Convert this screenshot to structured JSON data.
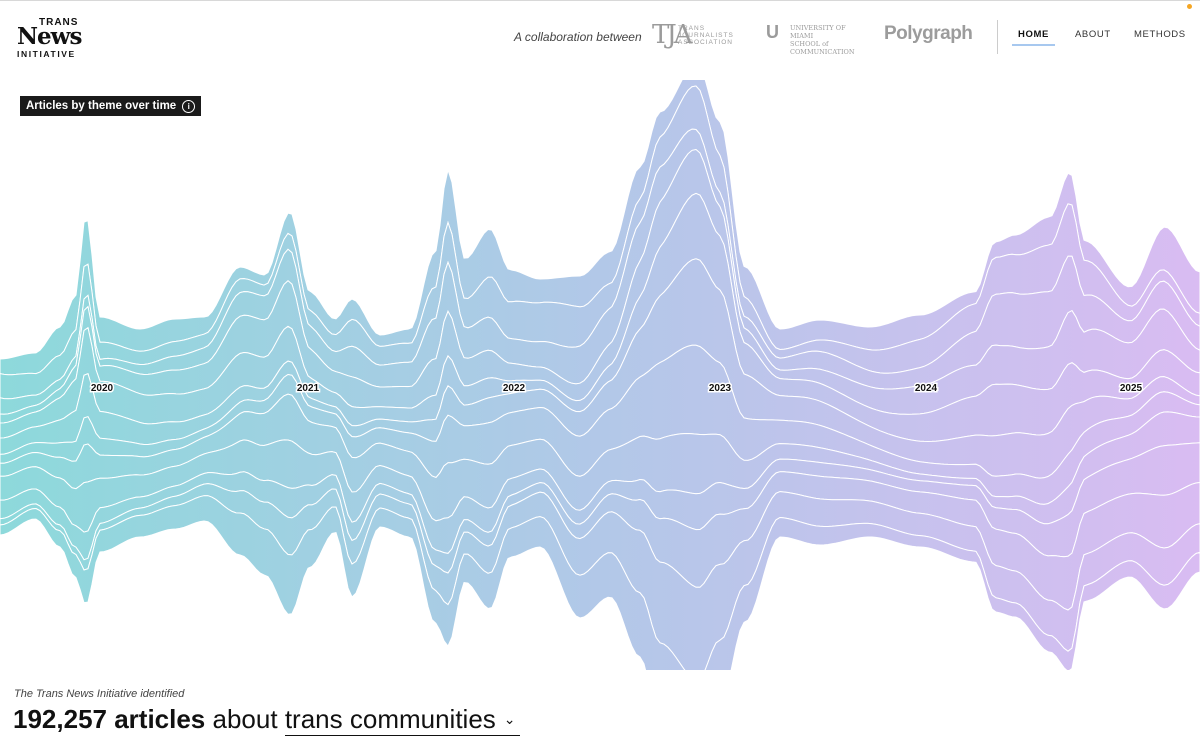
{
  "header": {
    "logo": {
      "line1": "TRANS",
      "line2": "News",
      "line3": "INITIATIVE"
    },
    "collaboration_text": "A collaboration between",
    "partners": {
      "tja": {
        "mark": "TJA",
        "words": [
          "TRANS",
          "JOURNALISTS",
          "ASSOCIATION"
        ]
      },
      "um": {
        "mark": "U",
        "words": [
          "UNIVERSITY OF MIAMI",
          "SCHOOL of",
          "COMMUNICATION"
        ]
      },
      "polygraph": "Polygraph"
    },
    "nav": [
      {
        "label": "HOME",
        "active": true
      },
      {
        "label": "ABOUT",
        "active": false
      },
      {
        "label": "METHODS",
        "active": false
      }
    ]
  },
  "chart_label": "Articles by theme over time",
  "info_glyph": "i",
  "chart_data": {
    "type": "area",
    "x_tick_labels": [
      "2020",
      "2021",
      "2022",
      "2023",
      "2024",
      "2025"
    ],
    "series_count": 12,
    "gradient_colors": [
      "#8dd9db",
      "#b2c8e8",
      "#d9bcf2"
    ],
    "line_color": "#ffffff"
  },
  "footer": {
    "intro": "The Trans News Initiative identified",
    "count": "192,257 articles",
    "about": "about",
    "topic": "trans communities",
    "chevron": "⌄"
  }
}
